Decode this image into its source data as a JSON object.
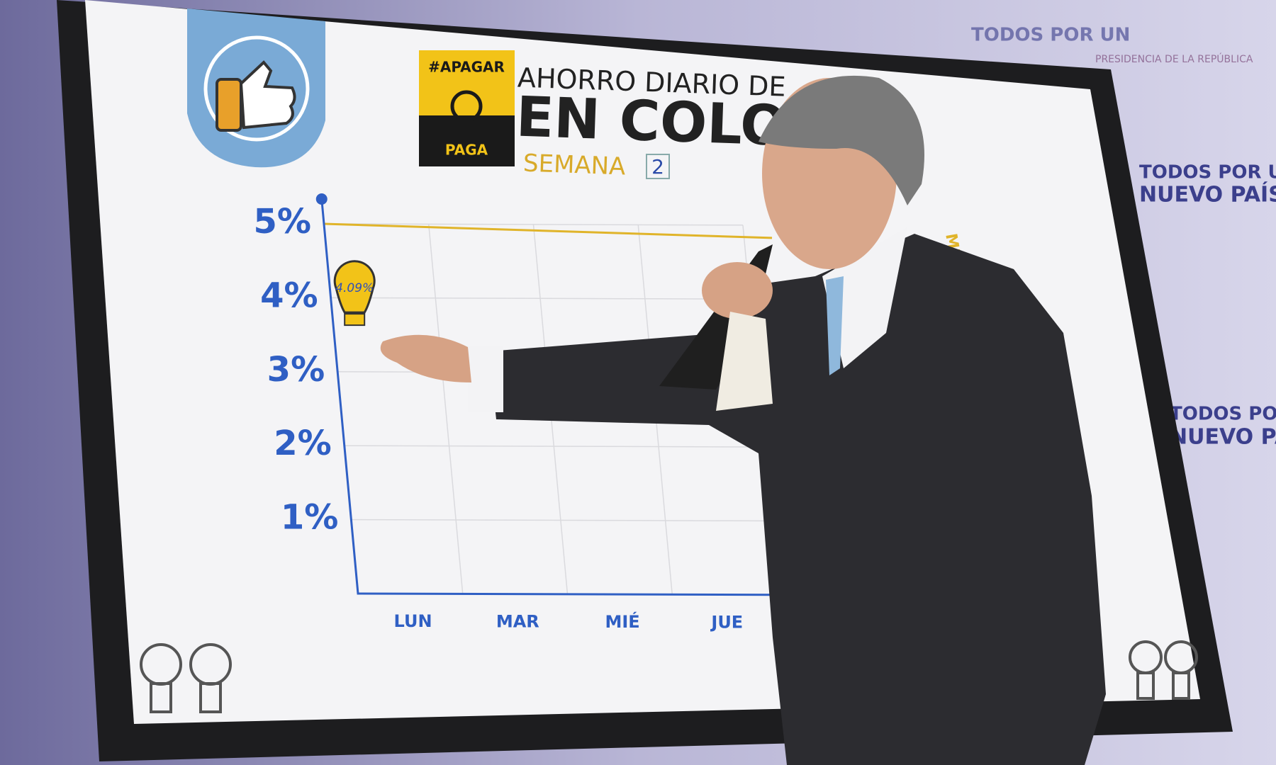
{
  "chart_data": {
    "type": "line",
    "categories": [
      "LUN",
      "MAR",
      "MIÉ",
      "JUE"
    ],
    "values": [
      4.09,
      null,
      null,
      null
    ],
    "value_labels": [
      "4.09%"
    ],
    "color": "#f2c318",
    "ylim": [
      0,
      5
    ],
    "yticks": [
      {
        "value": 1,
        "label": "1%"
      },
      {
        "value": 2,
        "label": "2%"
      },
      {
        "value": 3,
        "label": "3%"
      },
      {
        "value": 4,
        "label": "4%"
      },
      {
        "value": 5,
        "label": "5%"
      }
    ],
    "grid": true,
    "target": 5,
    "target_label": "META"
  },
  "board": {
    "badge_top": "#APAGAR",
    "badge_bottom": "PAGA",
    "title_line1": "AHORRO DIARIO DE",
    "title_line2": "EN COLO",
    "week_label": "SEMANA",
    "week_number": "2"
  },
  "backdrop": [
    "TODOS POR UN",
    "NUEVO PAÍS",
    "PRESIDENCIA DE LA REPÚBLICA",
    "TODOS POR UN",
    "NUEVO PAÍS"
  ]
}
